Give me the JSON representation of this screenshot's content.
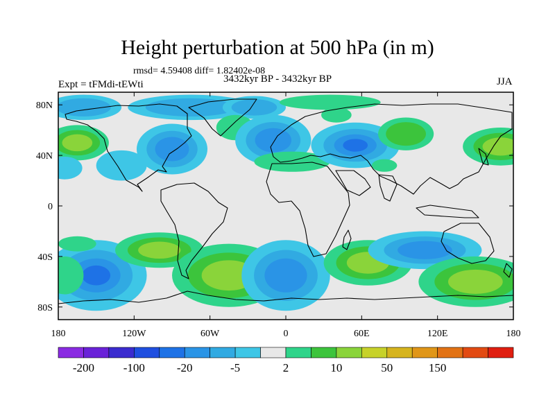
{
  "header": {
    "title": "Height perturbation at 500 hPa (in m)",
    "stats": "rmsd= 4.59408 diff= 1.82402e-08",
    "expt": "Expt = tFMdi-tEWti",
    "period": "3432kyr BP - 3432kyr BP",
    "season": "JJA"
  },
  "chart_data": {
    "type": "heatmap",
    "title": "Height perturbation at 500 hPa (in m)",
    "xlabel": "",
    "ylabel": "",
    "xlim": [
      -180,
      180
    ],
    "ylim": [
      -90,
      90
    ],
    "x_ticks": [
      {
        "value": -180,
        "label": "180"
      },
      {
        "value": -120,
        "label": "120W"
      },
      {
        "value": -60,
        "label": "60W"
      },
      {
        "value": 0,
        "label": "0"
      },
      {
        "value": 60,
        "label": "60E"
      },
      {
        "value": 120,
        "label": "120E"
      },
      {
        "value": 180,
        "label": "180"
      }
    ],
    "y_ticks": [
      {
        "value": 80,
        "label": "80N"
      },
      {
        "value": 40,
        "label": "40N"
      },
      {
        "value": 0,
        "label": "0"
      },
      {
        "value": -40,
        "label": "40S"
      },
      {
        "value": -80,
        "label": "80S"
      }
    ],
    "colorbar": {
      "colors": [
        "#8a2be2",
        "#6a22d8",
        "#3b2ccf",
        "#1f4fe0",
        "#1e72e6",
        "#2a94e6",
        "#31aae2",
        "#3ec6e6",
        "#e8e8e8",
        "#2fd48a",
        "#3cc43c",
        "#8ad43a",
        "#c7d22a",
        "#d6b41e",
        "#e09618",
        "#e27214",
        "#e24a12",
        "#e01e10"
      ],
      "labels": [
        "-200",
        "-100",
        "-20",
        "-5",
        "2",
        "10",
        "50",
        "150"
      ]
    },
    "fill_colors": {
      "background": "#e8e8e8",
      "neg_light": "#3ec6e6",
      "neg_mid": "#31aae2",
      "neg_strong": "#2a94e6",
      "neg_deep": "#1e72e6",
      "pos_light": "#2fd48a",
      "pos_mid": "#3cc43c",
      "pos_strong": "#8ad43a",
      "pos_peak": "#c7d22a"
    },
    "anomalies": [
      {
        "lon": -160,
        "lat": 78,
        "rlon": 30,
        "rlat": 10,
        "value": -6
      },
      {
        "lon": -75,
        "lat": 78,
        "rlon": 50,
        "rlat": 10,
        "value": -5
      },
      {
        "lon": -25,
        "lat": 78,
        "rlon": 25,
        "rlat": 9,
        "value": -6
      },
      {
        "lon": 35,
        "lat": 82,
        "rlon": 40,
        "rlat": 6,
        "value": 4
      },
      {
        "lon": -40,
        "lat": 62,
        "rlon": 15,
        "rlat": 10,
        "value": 4
      },
      {
        "lon": -165,
        "lat": 50,
        "rlon": 25,
        "rlat": 14,
        "value": 7
      },
      {
        "lon": -90,
        "lat": 45,
        "rlon": 28,
        "rlat": 20,
        "value": -8
      },
      {
        "lon": -10,
        "lat": 52,
        "rlon": 30,
        "rlat": 20,
        "value": -9
      },
      {
        "lon": -130,
        "lat": 32,
        "rlon": 20,
        "rlat": 12,
        "value": -4
      },
      {
        "lon": 5,
        "lat": 35,
        "rlon": 30,
        "rlat": 8,
        "value": 3
      },
      {
        "lon": 55,
        "lat": 48,
        "rlon": 35,
        "rlat": 18,
        "value": -10
      },
      {
        "lon": 40,
        "lat": 72,
        "rlon": 12,
        "rlat": 6,
        "value": 4
      },
      {
        "lon": 95,
        "lat": 57,
        "rlon": 22,
        "rlat": 13,
        "value": 5
      },
      {
        "lon": 170,
        "lat": 47,
        "rlon": 30,
        "rlat": 15,
        "value": 8
      },
      {
        "lon": -175,
        "lat": 30,
        "rlon": 14,
        "rlat": 9,
        "value": -4
      },
      {
        "lon": 78,
        "lat": 32,
        "rlon": 10,
        "rlat": 5,
        "value": 3
      },
      {
        "lon": -150,
        "lat": -55,
        "rlon": 40,
        "rlat": 28,
        "value": -12
      },
      {
        "lon": -100,
        "lat": -35,
        "rlon": 35,
        "rlat": 14,
        "value": 7
      },
      {
        "lon": -45,
        "lat": -55,
        "rlon": 45,
        "rlat": 25,
        "value": 9
      },
      {
        "lon": 0,
        "lat": -55,
        "rlon": 35,
        "rlat": 28,
        "value": -9
      },
      {
        "lon": 65,
        "lat": -45,
        "rlon": 35,
        "rlat": 18,
        "value": 7
      },
      {
        "lon": 110,
        "lat": -35,
        "rlon": 45,
        "rlat": 15,
        "value": -7
      },
      {
        "lon": 150,
        "lat": -60,
        "rlon": 45,
        "rlat": 20,
        "value": 7
      },
      {
        "lon": -175,
        "lat": -55,
        "rlon": 15,
        "rlat": 15,
        "value": 4
      },
      {
        "lon": -165,
        "lat": -30,
        "rlon": 15,
        "rlat": 6,
        "value": 3
      }
    ]
  }
}
